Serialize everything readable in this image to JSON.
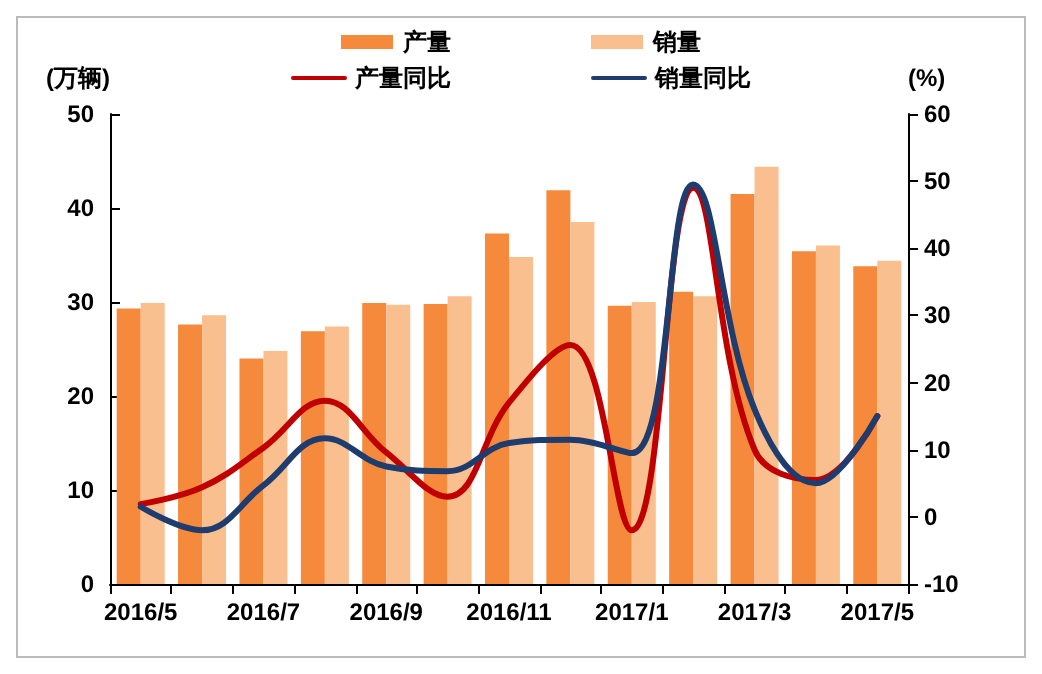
{
  "chart_data": {
    "type": "bar",
    "categories": [
      "2016/5",
      null,
      "2016/7",
      null,
      "2016/9",
      null,
      "2016/11",
      null,
      "2017/1",
      null,
      "2017/3",
      null,
      "2017/5"
    ],
    "series": [
      {
        "name": "产量",
        "color": "#f58a3c",
        "values": [
          29.3,
          27.6,
          24.0,
          26.9,
          29.9,
          29.8,
          37.3,
          41.9,
          29.6,
          31.1,
          41.5,
          35.4,
          33.8
        ]
      },
      {
        "name": "销量",
        "color": "#f9bf8f",
        "values": [
          29.9,
          28.6,
          24.8,
          27.4,
          29.7,
          30.6,
          34.8,
          38.5,
          30.0,
          30.6,
          44.4,
          36.0,
          34.4
        ]
      },
      {
        "name": "产量同比",
        "type": "line",
        "axis": "y2",
        "color": "#c00000",
        "values": [
          1.9,
          4.4,
          10.3,
          17.3,
          9.6,
          3.0,
          17.0,
          25.6,
          -2.0,
          49.0,
          10.0,
          5.5,
          15.0
        ]
      },
      {
        "name": "销量同比",
        "type": "line",
        "axis": "y2",
        "color": "#1f3c6e",
        "values": [
          1.5,
          -2.0,
          4.7,
          11.7,
          7.5,
          6.8,
          11.0,
          11.5,
          9.5,
          49.5,
          16.0,
          5.0,
          15.0
        ]
      }
    ],
    "ylabel": "(万辆)",
    "y2label": "(%)",
    "ylim": [
      0,
      50
    ],
    "yticks": [
      0,
      10,
      20,
      30,
      40,
      50
    ],
    "y2lim": [
      -10,
      60
    ],
    "y2ticks": [
      -10,
      0,
      10,
      20,
      30,
      40,
      50,
      60
    ],
    "grid": false,
    "legend": "top",
    "marker": "none",
    "line_style": "solid"
  }
}
